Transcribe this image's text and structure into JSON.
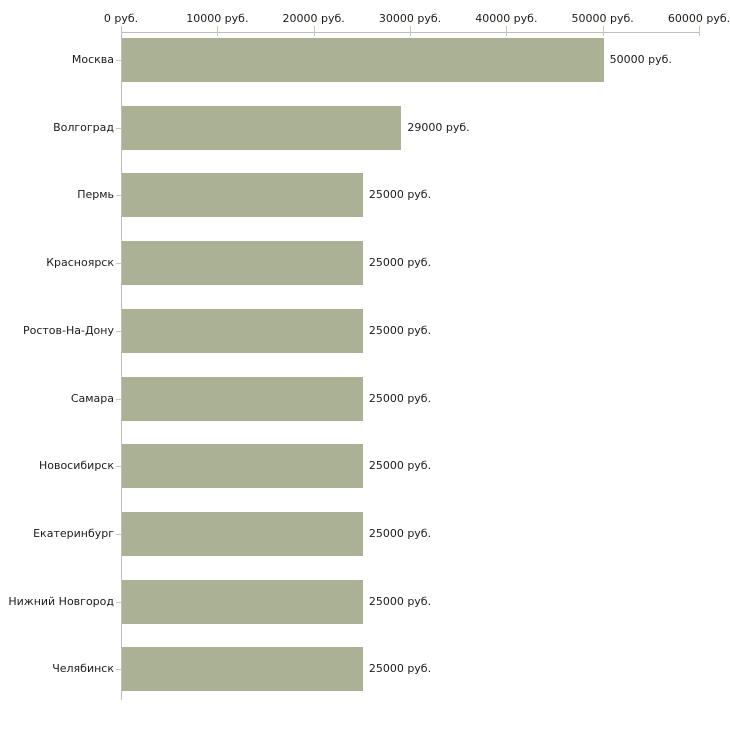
{
  "chart_data": {
    "type": "bar",
    "orientation": "horizontal",
    "title": "",
    "xlabel": "",
    "ylabel": "",
    "unit": "руб.",
    "categories": [
      "Москва",
      "Волгоград",
      "Пермь",
      "Красноярск",
      "Ростов-На-Дону",
      "Самара",
      "Новосибирск",
      "Екатеринбург",
      "Нижний Новгород",
      "Челябинск"
    ],
    "values": [
      50000,
      29000,
      25000,
      25000,
      25000,
      25000,
      25000,
      25000,
      25000,
      25000
    ],
    "value_labels": [
      "50000 руб.",
      "29000 руб.",
      "25000 руб.",
      "25000 руб.",
      "25000 руб.",
      "25000 руб.",
      "25000 руб.",
      "25000 руб.",
      "25000 руб.",
      "25000 руб."
    ],
    "x_tick_values": [
      0,
      10000,
      20000,
      30000,
      40000,
      50000,
      60000
    ],
    "x_tick_labels": [
      "0 руб.",
      "10000 руб.",
      "20000 руб.",
      "30000 руб.",
      "40000 руб.",
      "50000 руб.",
      "60000 руб."
    ],
    "xlim": [
      0,
      60000
    ],
    "grid": false,
    "legend": false,
    "colors": {
      "bar": "#abb194",
      "axis": "#bdbdbd",
      "tick": "#c9caa8",
      "text": "#1c1c1c"
    }
  }
}
